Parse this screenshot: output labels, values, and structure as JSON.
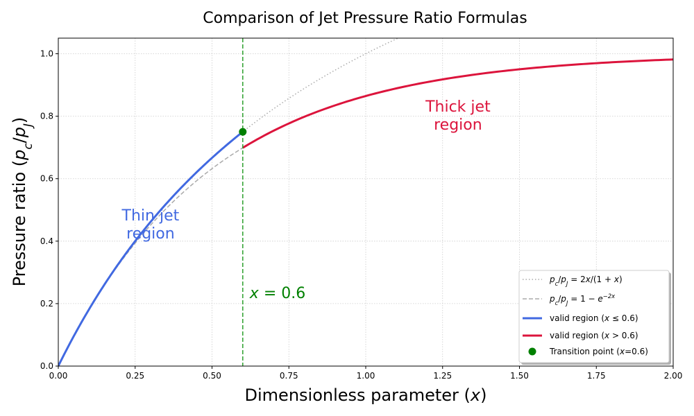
{
  "chart_data": {
    "type": "line",
    "title": "Comparison of Jet Pressure Ratio Formulas",
    "xlabel": "Dimensionless parameter (x)",
    "ylabel": "Pressure ratio (p_c/p_J)",
    "xlim": [
      0,
      2
    ],
    "ylim": [
      0,
      1.05
    ],
    "x_ticks": [
      "0.00",
      "0.25",
      "0.50",
      "0.75",
      "1.00",
      "1.25",
      "1.50",
      "1.75",
      "2.00"
    ],
    "y_ticks": [
      "0.0",
      "0.2",
      "0.4",
      "0.6",
      "0.8",
      "1.0"
    ],
    "grid": true,
    "legend_position": "bottom-right",
    "series": [
      {
        "name": "pc/pJ = 2x/(1+x)",
        "style": "dotted",
        "color": "#aaaaaa",
        "x": [
          0,
          0.25,
          0.5,
          0.75,
          1.0,
          1.1
        ],
        "y": [
          0,
          0.4,
          0.667,
          0.857,
          1.0,
          1.048
        ]
      },
      {
        "name": "pc/pJ = 1 − e^(−2x)",
        "style": "dashed",
        "color": "#aaaaaa",
        "x": [
          0,
          0.25,
          0.5,
          0.6
        ],
        "y": [
          0,
          0.393,
          0.632,
          0.699
        ]
      },
      {
        "name": "valid region (x ≤ 0.6)",
        "style": "solid",
        "color": "#4169e1",
        "x": [
          0,
          0.1,
          0.2,
          0.3,
          0.4,
          0.5,
          0.6
        ],
        "y": [
          0,
          0.182,
          0.333,
          0.462,
          0.571,
          0.667,
          0.75
        ]
      },
      {
        "name": "valid region (x > 0.6)",
        "style": "solid",
        "color": "#dc143c",
        "x": [
          0.6,
          0.8,
          1.0,
          1.25,
          1.5,
          1.75,
          2.0
        ],
        "y": [
          0.699,
          0.798,
          0.865,
          0.918,
          0.95,
          0.97,
          0.982
        ]
      },
      {
        "name": "Transition point (x=0.6)",
        "style": "marker",
        "color": "#008000",
        "x": [
          0.6
        ],
        "y": [
          0.75
        ]
      }
    ],
    "vline": {
      "x": 0.6,
      "label": "x = 0.6",
      "color": "#2ca02c"
    },
    "annotations": [
      {
        "text": "Thin jet region",
        "lines": [
          "Thin jet",
          "region"
        ],
        "x": 0.3,
        "y": 0.43,
        "color": "#4169e1"
      },
      {
        "text": "Thick jet region",
        "lines": [
          "Thick jet",
          "region"
        ],
        "x": 1.3,
        "y": 0.78,
        "color": "#dc143c"
      }
    ]
  }
}
